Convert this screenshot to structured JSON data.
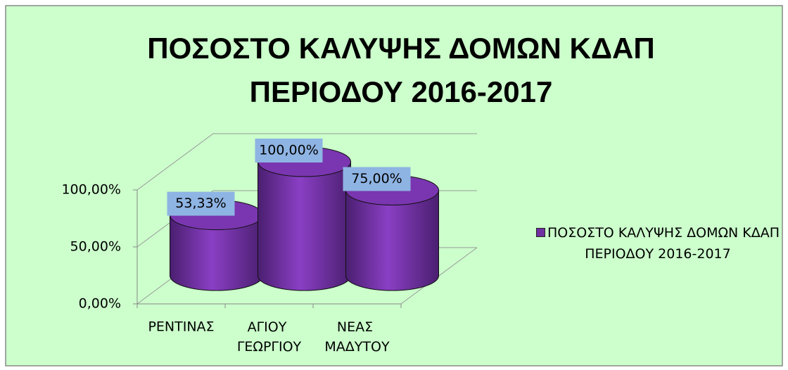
{
  "chart_data": {
    "type": "bar3d",
    "title": "ΠΟΣΟΣΤΟ ΚΑΛΥΨΗΣ ΔΟΜΩΝ ΚΔΑΠ ΠΕΡΙΟΔΟΥ 2016-2017",
    "categories": [
      "ΡΕΝΤΙΝΑΣ",
      "ΑΓΙΟΥ ΓΕΩΡΓΙΟΥ",
      "ΝΕΑΣ ΜΑΔΥΤΟΥ"
    ],
    "series": [
      {
        "name": "ΠΟΣΟΣΤΟ ΚΑΛΥΨΗΣ ΔΟΜΩΝ ΚΔΑΠ ΠΕΡΙΟΔΟΥ 2016-2017",
        "color": "#7030a0",
        "values": [
          53.33,
          100,
          75
        ],
        "value_labels": [
          "53,33%",
          "100,00%",
          "75,00%"
        ]
      }
    ],
    "ylim": [
      0,
      100
    ],
    "yticks": [
      {
        "value": 0,
        "label": "0,00%"
      },
      {
        "value": 50,
        "label": "50,00%"
      },
      {
        "value": 100,
        "label": "100,00%"
      }
    ],
    "grid": true,
    "legend": "right"
  }
}
